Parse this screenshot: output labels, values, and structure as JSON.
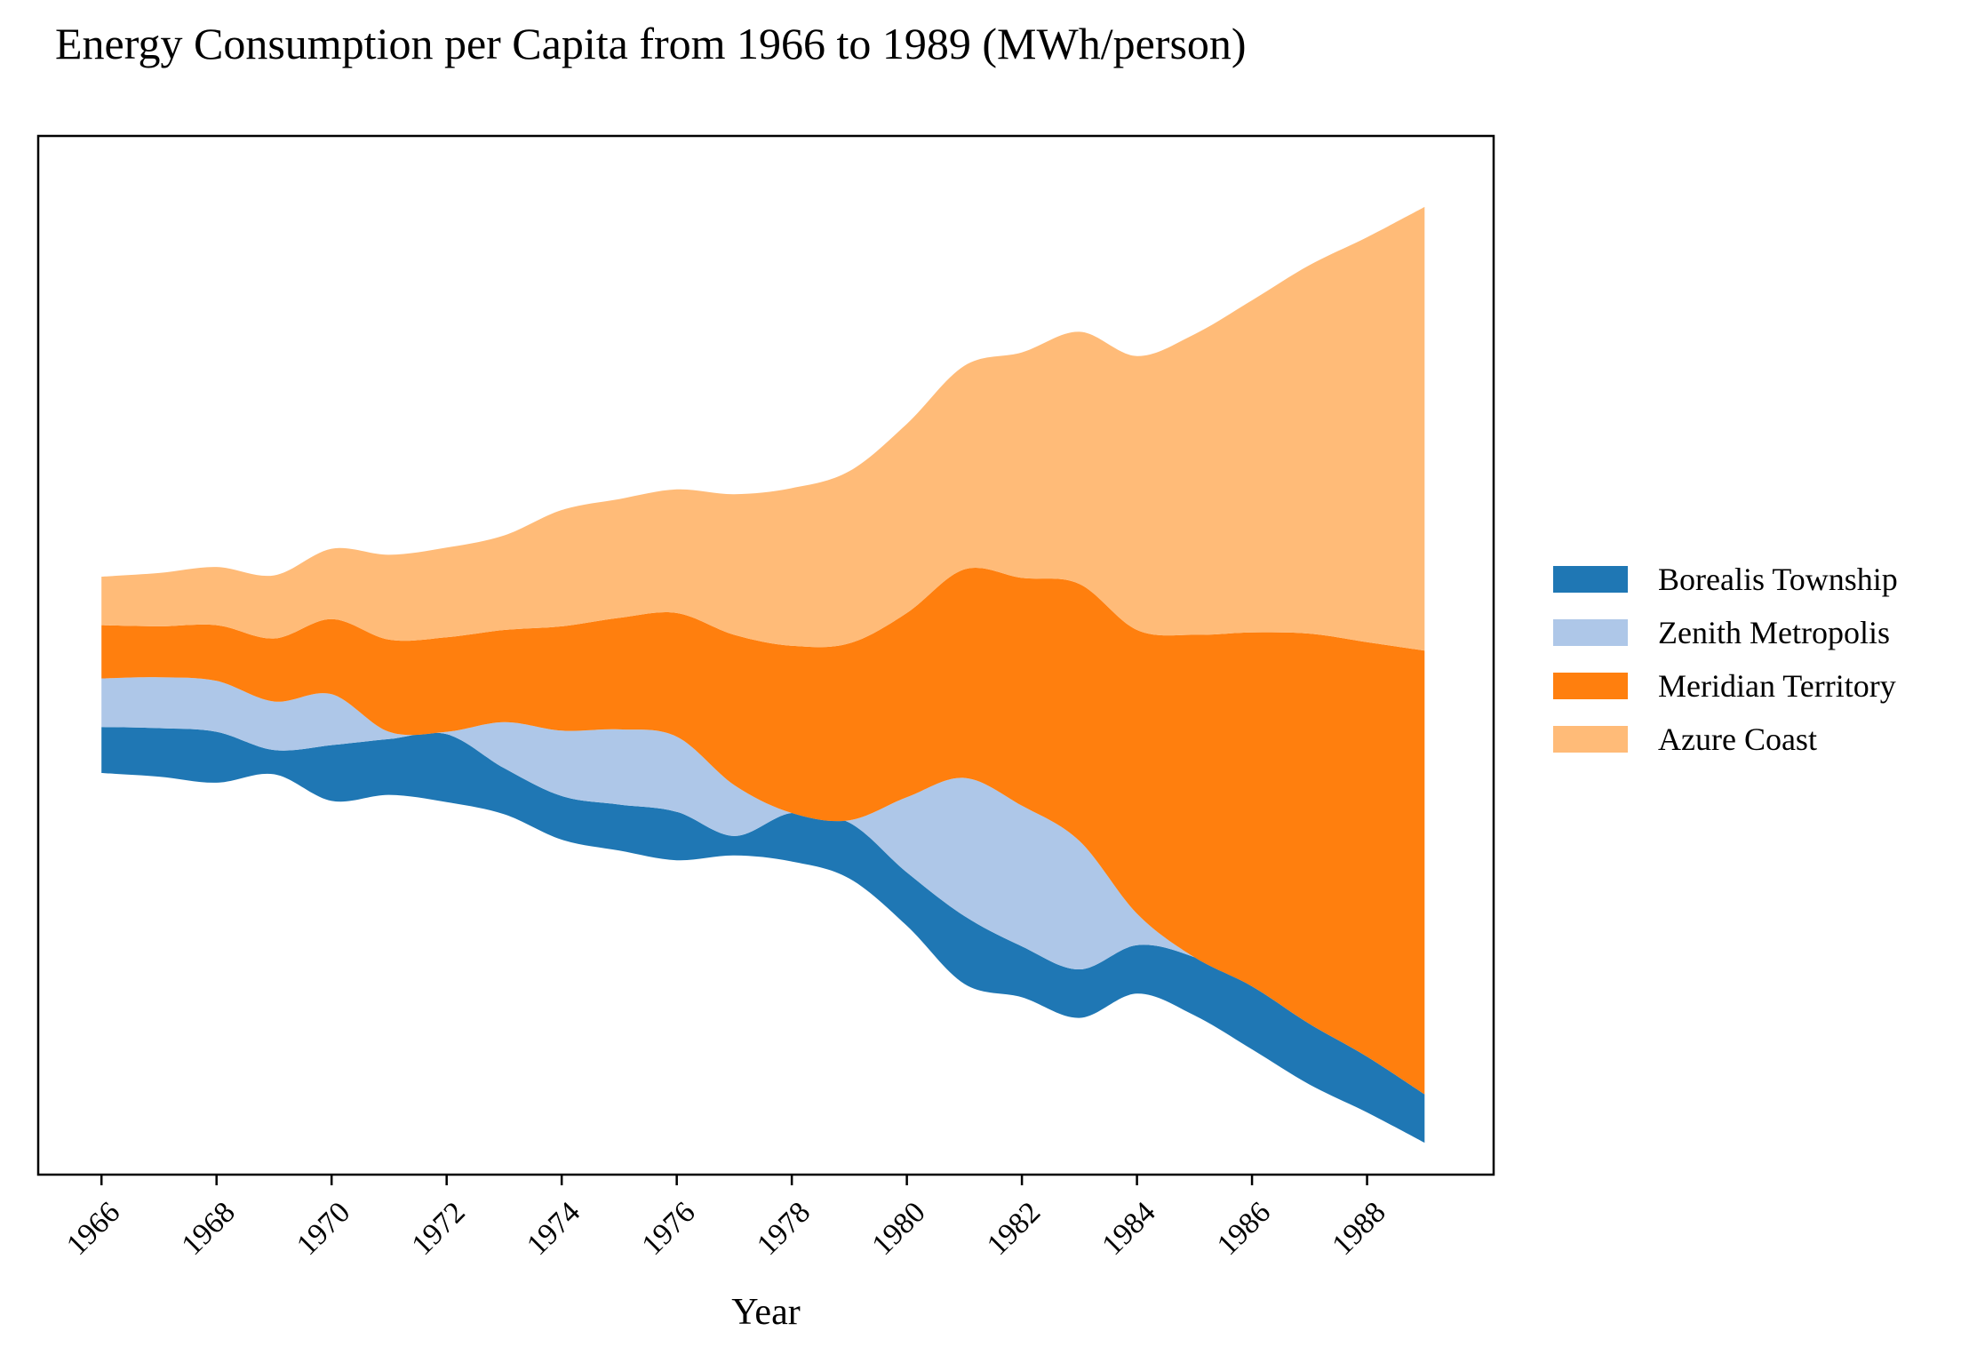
{
  "chart_data": {
    "type": "area",
    "subtype": "streamgraph",
    "title": "Energy Consumption per Capita from 1966 to 1989 (MWh/person)",
    "xlabel": "Year",
    "ylabel": "",
    "x": [
      1966,
      1967,
      1968,
      1969,
      1970,
      1971,
      1972,
      1973,
      1974,
      1975,
      1976,
      1977,
      1978,
      1979,
      1980,
      1981,
      1982,
      1983,
      1984,
      1985,
      1986,
      1987,
      1988,
      1989
    ],
    "xticks": [
      "1966",
      "1968",
      "1970",
      "1972",
      "1974",
      "1976",
      "1978",
      "1980",
      "1982",
      "1984",
      "1986",
      "1988"
    ],
    "xlim": [
      1964.9,
      1990.2
    ],
    "yaxis_visible": false,
    "grid": false,
    "legend_position": "right",
    "series": [
      {
        "name": "Borealis Township",
        "color": "#1f77b4",
        "values": [
          1.9,
          2.0,
          2.1,
          1.0,
          2.3,
          2.3,
          2.8,
          1.9,
          1.8,
          1.9,
          2.0,
          0.8,
          2.0,
          2.3,
          2.2,
          2.8,
          2.1,
          2.0,
          2.0,
          2.4,
          2.6,
          2.5,
          2.3,
          2.0
        ]
      },
      {
        "name": "Zenith Metropolis",
        "color": "#aec7e8",
        "values": [
          2.0,
          2.1,
          2.1,
          2.0,
          2.1,
          0.3,
          0.1,
          1.9,
          2.7,
          3.1,
          3.1,
          2.1,
          0.0,
          0.1,
          3.1,
          5.7,
          5.8,
          5.3,
          1.3,
          0.0,
          0.0,
          0.0,
          0.0,
          0.0
        ]
      },
      {
        "name": "Meridian Territory",
        "color": "#ff7f0e",
        "values": [
          2.2,
          2.1,
          2.3,
          2.6,
          3.1,
          3.8,
          3.9,
          3.8,
          4.3,
          4.6,
          5.1,
          6.2,
          6.9,
          7.3,
          7.6,
          8.6,
          9.4,
          10.6,
          11.7,
          13.3,
          14.6,
          16.1,
          17.1,
          18.3
        ]
      },
      {
        "name": "Azure Coast",
        "color": "#ffbb78",
        "values": [
          2.0,
          2.2,
          2.4,
          2.6,
          2.9,
          3.5,
          3.7,
          3.9,
          4.8,
          4.9,
          5.1,
          5.8,
          6.5,
          7.1,
          7.8,
          8.4,
          9.3,
          10.4,
          11.3,
          12.4,
          13.7,
          15.2,
          16.7,
          18.3
        ]
      }
    ]
  }
}
